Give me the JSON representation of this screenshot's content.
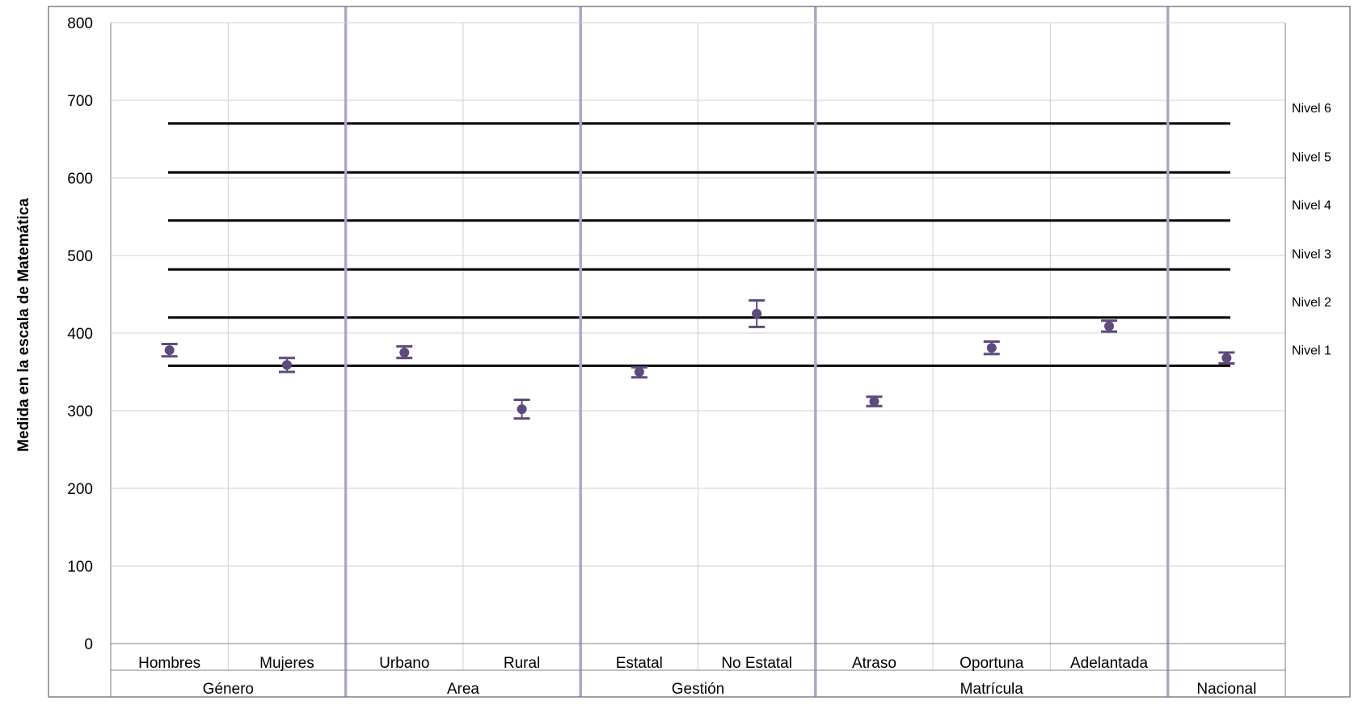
{
  "chart_data": {
    "type": "scatter",
    "ylabel": "Medida en la escala de Matemática",
    "ylim": [
      0,
      800
    ],
    "yticks": [
      0,
      100,
      200,
      300,
      400,
      500,
      600,
      700,
      800
    ],
    "grid": true,
    "categories": [
      "Hombres",
      "Mujeres",
      "Urbano",
      "Rural",
      "Estatal",
      "No Estatal",
      "Atraso",
      "Oportuna",
      "Adelantada",
      ""
    ],
    "groups": [
      {
        "label": "Género",
        "start": 0,
        "end": 1
      },
      {
        "label": "Area",
        "start": 2,
        "end": 3
      },
      {
        "label": "Gestión",
        "start": 4,
        "end": 5
      },
      {
        "label": "Matrícula",
        "start": 6,
        "end": 8
      },
      {
        "label": "Nacional",
        "start": 9,
        "end": 9
      }
    ],
    "points": [
      {
        "category": "Hombres",
        "mean": 378,
        "lower": 370,
        "upper": 386
      },
      {
        "category": "Mujeres",
        "mean": 359,
        "lower": 350,
        "upper": 368
      },
      {
        "category": "Urbano",
        "mean": 375,
        "lower": 368,
        "upper": 383
      },
      {
        "category": "Rural",
        "mean": 302,
        "lower": 290,
        "upper": 314
      },
      {
        "category": "Estatal",
        "mean": 350,
        "lower": 343,
        "upper": 356
      },
      {
        "category": "No Estatal",
        "mean": 425,
        "lower": 408,
        "upper": 442
      },
      {
        "category": "Atraso",
        "mean": 312,
        "lower": 306,
        "upper": 318
      },
      {
        "category": "Oportuna",
        "mean": 381,
        "lower": 373,
        "upper": 389
      },
      {
        "category": "Adelantada",
        "mean": 409,
        "lower": 402,
        "upper": 416
      },
      {
        "category": "",
        "mean": 368,
        "lower": 361,
        "upper": 375
      }
    ],
    "levels": [
      {
        "label": "Nivel 1",
        "value": 358
      },
      {
        "label": "Nivel 2",
        "value": 420
      },
      {
        "label": "Nivel 3",
        "value": 482
      },
      {
        "label": "Nivel 4",
        "value": 545
      },
      {
        "label": "Nivel 5",
        "value": 607
      },
      {
        "label": "Nivel 6",
        "value": 670
      }
    ],
    "colors": {
      "marker": "#5e4a7c",
      "group_divider": "#b3a3c9",
      "grid": "#d0d0d0",
      "level_line": "#000000",
      "frame": "#808080"
    }
  }
}
